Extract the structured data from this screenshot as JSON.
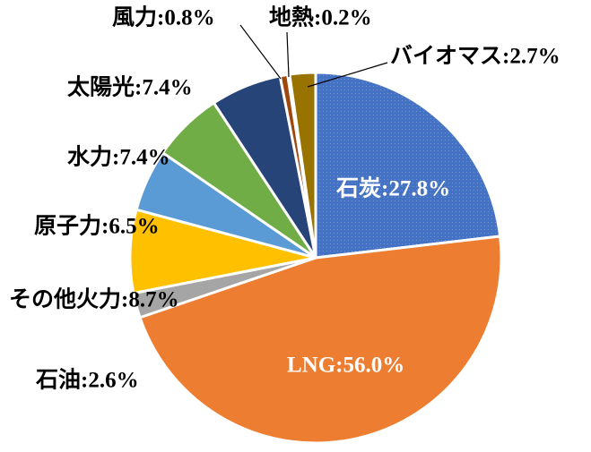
{
  "chart_data": {
    "type": "pie",
    "values": [
      27.8,
      56.0,
      2.6,
      8.7,
      6.5,
      7.4,
      7.4,
      0.8,
      0.2,
      2.7
    ],
    "value_labels": [
      "石炭:27.8%",
      "LNG:56.0%",
      "石油:2.6%",
      "その他火力:8.7%",
      "原子力:6.5%",
      "水力:7.4%",
      "太陽光:7.4%",
      "風力:0.8%",
      "地熱:0.2%",
      "バイオマス:2.7%"
    ],
    "colors": [
      "#4472c4",
      "#ed7d31",
      "#a5a5a5",
      "#ffc000",
      "#5b9bd5",
      "#70ad47",
      "#264478",
      "#9e480e",
      "#636363",
      "#997300"
    ]
  }
}
